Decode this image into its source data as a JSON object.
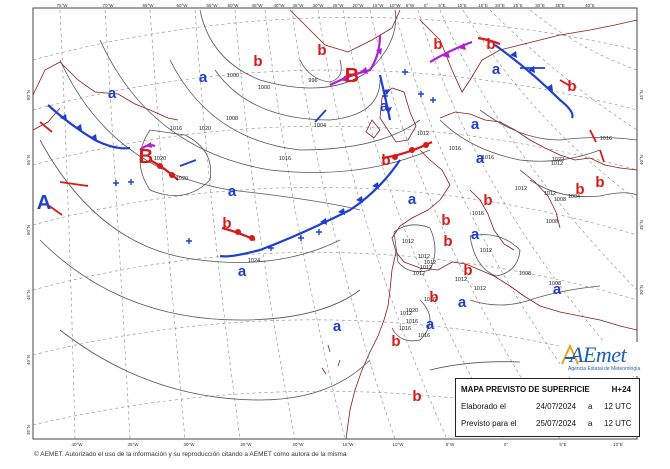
{
  "map": {
    "title": "MAPA PREVISTO DE SUPERFICIE",
    "lead_time": "H+24",
    "elaborado_label": "Elaborado el",
    "elaborado_date": "24/07/2024",
    "elaborado_sep": "a",
    "elaborado_time": "12 UTC",
    "previsto_label": "Previsto para el",
    "previsto_date": "25/07/2024",
    "previsto_sep": "a",
    "previsto_time": "12 UTC",
    "footer": "© AEMET. Autorizado el uso de la información y su reproducción citando a AEMET como autora de la misma",
    "logo_word": "AEmet",
    "logo_sub": "Agencia Estatal de Meteorología",
    "colors": {
      "high": "#1f3fd1",
      "low": "#d71a1a",
      "occluded": "#b11fd1",
      "cold_front": "#1f3fd1",
      "warm_front": "#d71a1a",
      "isobar": "#555555",
      "coast": "#8a1a1a",
      "graticule": "#888888"
    },
    "top_lon_labels": [
      "75°W",
      "70°W",
      "65°W",
      "60°W",
      "55°W",
      "50°W",
      "45°W",
      "40°W",
      "35°W",
      "30°W",
      "25°W",
      "20°W",
      "15°W",
      "10°W",
      "5°W",
      "0°",
      "5°E",
      "10°E",
      "15°E",
      "20°E",
      "25°E",
      "30°E",
      "35°E",
      "40°E"
    ],
    "bottom_lon_labels": [
      "40°W",
      "35°W",
      "30°W",
      "25°W",
      "20°W",
      "15°W",
      "10°W",
      "5°W",
      "0°",
      "5°E",
      "10°E"
    ],
    "lat_labels_left": [
      "60°N",
      "55°N",
      "50°N",
      "45°N",
      "40°N",
      "35°N"
    ],
    "lat_labels_right": [
      "45°N",
      "40°N",
      "35°N",
      "30°N",
      "25°N"
    ],
    "pressure_centers": [
      {
        "label": "A",
        "kind": "high",
        "big": true
      },
      {
        "label": "B",
        "kind": "low",
        "big": true
      },
      {
        "label": "B",
        "kind": "low",
        "big": true
      },
      {
        "label": "a",
        "kind": "high"
      },
      {
        "label": "a",
        "kind": "high"
      },
      {
        "label": "a",
        "kind": "high"
      },
      {
        "label": "a",
        "kind": "high"
      },
      {
        "label": "a",
        "kind": "high"
      },
      {
        "label": "a",
        "kind": "high"
      },
      {
        "label": "a",
        "kind": "high"
      },
      {
        "label": "a",
        "kind": "high"
      },
      {
        "label": "a",
        "kind": "high"
      },
      {
        "label": "a",
        "kind": "high"
      },
      {
        "label": "a",
        "kind": "high"
      },
      {
        "label": "a",
        "kind": "high"
      },
      {
        "label": "a",
        "kind": "high"
      },
      {
        "label": "a",
        "kind": "high"
      },
      {
        "label": "b",
        "kind": "low"
      },
      {
        "label": "b",
        "kind": "low"
      },
      {
        "label": "b",
        "kind": "low"
      },
      {
        "label": "b",
        "kind": "low"
      },
      {
        "label": "b",
        "kind": "low"
      },
      {
        "label": "b",
        "kind": "low"
      },
      {
        "label": "b",
        "kind": "low"
      },
      {
        "label": "b",
        "kind": "low"
      },
      {
        "label": "b",
        "kind": "low"
      },
      {
        "label": "b",
        "kind": "low"
      },
      {
        "label": "b",
        "kind": "low"
      },
      {
        "label": "b",
        "kind": "low"
      },
      {
        "label": "b",
        "kind": "low"
      },
      {
        "label": "b",
        "kind": "low"
      },
      {
        "label": "b",
        "kind": "low"
      },
      {
        "label": "b",
        "kind": "low"
      }
    ],
    "isobar_labels": [
      "1000",
      "1000",
      "1004",
      "1008",
      "996",
      "1020",
      "1016",
      "1020",
      "1024",
      "1020",
      "1016",
      "1012",
      "1016",
      "1012",
      "1012",
      "1012",
      "1012",
      "1012",
      "1012",
      "1016",
      "1012",
      "1012",
      "1008",
      "1008",
      "1016",
      "1020",
      "1016",
      "1016",
      "1016",
      "1012",
      "1022",
      "1012",
      "1008",
      "1012",
      "1016",
      "1012",
      "1008",
      "1016",
      "1004"
    ]
  }
}
